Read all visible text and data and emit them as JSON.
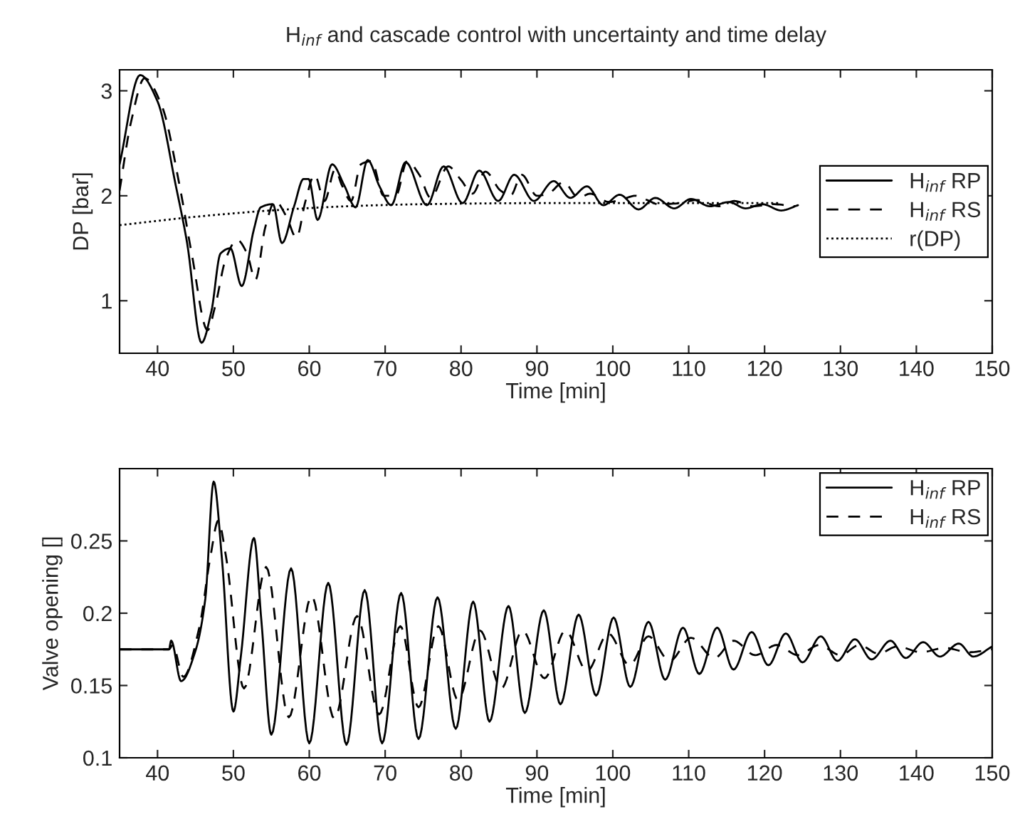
{
  "chart_data": [
    {
      "type": "line",
      "title": "H$_{inf}$ and cascade control with uncertainty and time delay",
      "xlabel": "Time [min]",
      "ylabel": "DP [bar]",
      "xlim": [
        35,
        150
      ],
      "xticks": [
        40,
        50,
        60,
        70,
        80,
        90,
        100,
        110,
        120,
        130,
        140,
        150
      ],
      "ylim": [
        0.5,
        3.2
      ],
      "yticks": [
        1,
        2,
        3
      ],
      "legend": "right",
      "series": [
        {
          "name": "H$_{inf}$ RP",
          "color": "#000000",
          "line_style": "solid",
          "x": [
            35,
            37.7,
            40,
            42.4,
            43.9,
            45.8,
            47.1,
            48.3,
            49.6,
            51.1,
            52.7,
            53.6,
            55.2,
            56.4,
            58,
            59.25,
            59.9,
            61.1,
            63,
            64.6,
            66.1,
            67.7,
            69.25,
            70.8,
            72.7,
            75.5,
            77.7,
            80.2,
            82.4,
            84.9,
            87,
            89.6,
            92.2,
            94.4,
            96.6,
            98.75,
            100.9,
            103.4,
            105.6,
            108.1,
            110.3,
            112.8,
            115.3,
            117.5,
            119.7,
            122.2,
            124.4
          ],
          "values": [
            2.3,
            3.15,
            2.9,
            2.1,
            1.55,
            0.6,
            0.9,
            1.45,
            1.5,
            1.14,
            1.68,
            1.89,
            1.92,
            1.55,
            1.9,
            2.16,
            2.16,
            1.77,
            2.3,
            2.1,
            1.89,
            2.34,
            2.09,
            1.91,
            2.32,
            1.91,
            2.28,
            1.93,
            2.24,
            1.95,
            2.2,
            1.95,
            2.14,
            1.98,
            2.09,
            1.91,
            2.01,
            1.87,
            1.98,
            1.88,
            1.97,
            1.9,
            1.94,
            1.88,
            1.92,
            1.86,
            1.91
          ]
        },
        {
          "name": "H$_{inf}$ RS",
          "color": "#000000",
          "line_style": "dashed",
          "x": [
            35,
            36.5,
            38.3,
            40.6,
            42.9,
            44.5,
            46.6,
            47.6,
            49,
            50.5,
            51.8,
            52.9,
            54.2,
            55.5,
            57,
            58.3,
            59.5,
            60.7,
            62,
            63.4,
            64.3,
            65.5,
            66.8,
            68.2,
            69.8,
            71.4,
            72.9,
            74.5,
            76,
            78.3,
            80,
            81.5,
            83.2,
            85.2,
            86.5,
            88,
            90,
            91.5,
            93.5,
            95.5,
            97,
            99.5,
            101,
            103,
            104.5,
            106,
            109,
            111,
            114,
            116,
            118.5,
            121,
            124
          ],
          "values": [
            2.05,
            2.7,
            3.12,
            2.85,
            2.1,
            1.45,
            0.72,
            0.95,
            1.4,
            1.58,
            1.45,
            1.2,
            1.7,
            1.95,
            1.8,
            1.6,
            1.95,
            2.2,
            1.95,
            2.25,
            2.1,
            1.95,
            2.3,
            2.33,
            2.0,
            2.0,
            2.33,
            2.2,
            1.98,
            2.28,
            2.15,
            2.02,
            2.23,
            2.05,
            2.0,
            2.2,
            2.0,
            2.02,
            2.13,
            1.98,
            2.02,
            1.94,
            1.96,
            2.0,
            1.96,
            1.92,
            1.93,
            1.96,
            1.9,
            1.95,
            1.9,
            1.92,
            1.9
          ]
        },
        {
          "name": "r(DP)",
          "color": "#000000",
          "line_style": "dotted",
          "x": [
            35,
            45,
            55,
            65,
            75,
            90,
            122
          ],
          "values": [
            1.72,
            1.8,
            1.86,
            1.9,
            1.92,
            1.93,
            1.93
          ]
        }
      ]
    },
    {
      "type": "line",
      "xlabel": "Time [min]",
      "ylabel": "Valve opening []",
      "xlim": [
        35,
        150
      ],
      "xticks": [
        40,
        50,
        60,
        70,
        80,
        90,
        100,
        110,
        120,
        130,
        140,
        150
      ],
      "ylim": [
        0.1,
        0.3
      ],
      "yticks": [
        0.1,
        0.15,
        0.2,
        0.25
      ],
      "legend": "top right",
      "series": [
        {
          "name": "H$_{inf}$ RP",
          "color": "#000000",
          "line_style": "solid",
          "x": [
            35,
            41.5,
            41.8,
            43.1,
            45,
            46.3,
            47.4,
            48.5,
            50,
            51,
            52.7,
            53.7,
            55,
            57.6,
            60,
            62.5,
            64.9,
            67.3,
            69.6,
            72.1,
            74.4,
            76.9,
            79.3,
            81.6,
            83.75,
            86.25,
            88.4,
            90.9,
            93.1,
            95.5,
            97.8,
            100.1,
            102.3,
            104.7,
            106.9,
            109.25,
            111.4,
            113.75,
            115.9,
            118.3,
            120.5,
            122.8,
            125,
            127.4,
            129.6,
            131.9,
            134.1,
            136.6,
            138.6,
            140.9,
            143.1,
            145.6,
            147.5,
            150
          ],
          "values": [
            0.175,
            0.175,
            0.181,
            0.153,
            0.174,
            0.21,
            0.291,
            0.237,
            0.132,
            0.171,
            0.252,
            0.194,
            0.116,
            0.231,
            0.11,
            0.221,
            0.109,
            0.216,
            0.11,
            0.214,
            0.113,
            0.211,
            0.12,
            0.208,
            0.125,
            0.205,
            0.131,
            0.202,
            0.137,
            0.199,
            0.143,
            0.197,
            0.149,
            0.194,
            0.154,
            0.19,
            0.158,
            0.19,
            0.161,
            0.187,
            0.164,
            0.186,
            0.166,
            0.184,
            0.167,
            0.182,
            0.168,
            0.181,
            0.169,
            0.18,
            0.17,
            0.179,
            0.17,
            0.177
          ]
        },
        {
          "name": "H$_{inf}$ RS",
          "color": "#000000",
          "line_style": "dashed",
          "x": [
            35,
            41.5,
            42,
            43.4,
            45.5,
            47,
            48,
            49,
            51.4,
            54.3,
            57.3,
            60.3,
            63.3,
            66.3,
            69.2,
            72,
            74.4,
            77,
            79.6,
            82.5,
            85.3,
            88.1,
            91,
            93.75,
            96.6,
            99.4,
            102.2,
            104.7,
            107.5,
            110.3,
            113.4,
            115.9,
            118.75,
            121.6,
            124.4,
            127.2,
            130,
            132.5,
            135,
            137.5,
            140.6,
            143.75,
            146.9,
            150
          ],
          "values": [
            0.175,
            0.175,
            0.178,
            0.156,
            0.19,
            0.24,
            0.264,
            0.24,
            0.148,
            0.232,
            0.128,
            0.212,
            0.127,
            0.198,
            0.13,
            0.191,
            0.135,
            0.191,
            0.14,
            0.188,
            0.148,
            0.188,
            0.155,
            0.188,
            0.16,
            0.186,
            0.164,
            0.184,
            0.167,
            0.183,
            0.169,
            0.181,
            0.171,
            0.178,
            0.171,
            0.178,
            0.171,
            0.178,
            0.172,
            0.177,
            0.173,
            0.176,
            0.173,
            0.175
          ]
        }
      ]
    }
  ]
}
